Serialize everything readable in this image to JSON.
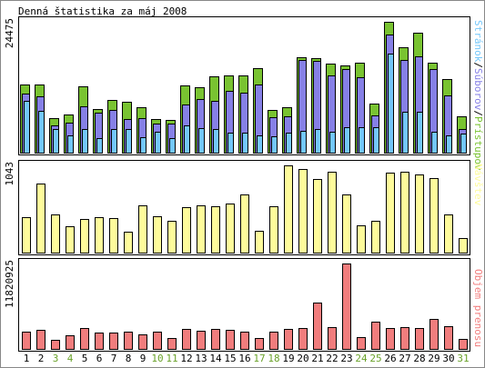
{
  "chart_data": {
    "type": "bar",
    "title": "Denná štatistika za máj 2008",
    "categories": [
      "1",
      "2",
      "3",
      "4",
      "5",
      "6",
      "7",
      "8",
      "9",
      "10",
      "11",
      "12",
      "13",
      "14",
      "15",
      "16",
      "17",
      "18",
      "19",
      "20",
      "21",
      "22",
      "23",
      "24",
      "25",
      "26",
      "27",
      "28",
      "29",
      "30",
      "31"
    ],
    "weekend_days": [
      "3",
      "4",
      "10",
      "11",
      "17",
      "18",
      "24",
      "25",
      "31"
    ],
    "colors": {
      "pristupov": "#79c331",
      "suborov": "#8680e6",
      "stranok": "#73c7fb",
      "navstev": "#fefb9b",
      "prenos": "#f17d7d",
      "weekday_label": "#000000",
      "weekend_label": "#6aa22a"
    },
    "panels": [
      {
        "id": "traffic",
        "ymax_label": "24475",
        "ymax": 24475,
        "side_label": {
          "parts": [
            {
              "text": "Stránok",
              "color": "#73c7fb"
            },
            {
              "text": "/",
              "color": "#000000"
            },
            {
              "text": "Súborov",
              "color": "#8680e6"
            },
            {
              "text": "/",
              "color": "#000000"
            },
            {
              "text": "Prístupov",
              "color": "#79c331"
            }
          ]
        },
        "series": [
          {
            "name": "Prístupov",
            "color": "#79c331",
            "values": [
              12690,
              12760,
              6380,
              7220,
              12350,
              8200,
              9900,
              9560,
              8440,
              6250,
              6080,
              12520,
              12180,
              14210,
              14380,
              14480,
              15860,
              7980,
              8580,
              17860,
              17670,
              16600,
              16240,
              16910,
              9150,
              24460,
              19710,
              22480,
              16890,
              13760,
              6790
            ]
          },
          {
            "name": "Súborov",
            "color": "#8680e6",
            "values": [
              11130,
              10620,
              5040,
              5650,
              8740,
              7550,
              7920,
              6360,
              6410,
              5420,
              5480,
              9090,
              10020,
              9620,
              11570,
              11230,
              12680,
              6600,
              6780,
              17320,
              17250,
              14410,
              15570,
              14180,
              6920,
              22150,
              17340,
              18030,
              15690,
              10650,
              4500
            ]
          },
          {
            "name": "Stránok",
            "color": "#73c7fb",
            "values": [
              9680,
              7840,
              4340,
              3230,
              4390,
              2750,
              4350,
              4460,
              2870,
              3840,
              2730,
              5070,
              4670,
              4500,
              3810,
              3770,
              3290,
              2980,
              3800,
              4000,
              4380,
              3850,
              4780,
              4820,
              4780,
              18550,
              7640,
              7650,
              3890,
              3250,
              3620
            ]
          }
        ]
      },
      {
        "id": "visits",
        "ymax_label": "1043",
        "ymax": 1043,
        "side_label": {
          "parts": [
            {
              "text": "Návštev",
              "color": "#fefb9b"
            }
          ]
        },
        "series": [
          {
            "name": "Návštev",
            "color": "#fefb9b",
            "values": [
              424,
              824,
              452,
              319,
              405,
              426,
              411,
              250,
              566,
              438,
              377,
              539,
              563,
              554,
              584,
              693,
              262,
              551,
              1043,
              1000,
              878,
              963,
              695,
              325,
              375,
              953,
              970,
              933,
              886,
              452,
              179
            ]
          }
        ]
      },
      {
        "id": "transfer",
        "ymax_label": "11820925",
        "ymax": 11820925,
        "side_label": {
          "parts": [
            {
              "text": "Objem prenosu",
              "color": "#f17d7d"
            }
          ]
        },
        "series": [
          {
            "name": "Objem prenosu",
            "color": "#f17d7d",
            "values": [
              2380000,
              2700000,
              1290000,
              1910000,
              2940000,
              2250000,
              2300000,
              2390000,
              2060000,
              2340000,
              1520000,
              2800000,
              2510000,
              2760000,
              2650000,
              2370000,
              1470000,
              2450000,
              2710000,
              2860000,
              6380000,
              3070000,
              11820925,
              1610000,
              3740000,
              2850000,
              3070000,
              2830000,
              4180000,
              3170000,
              1380000
            ]
          }
        ]
      }
    ]
  }
}
